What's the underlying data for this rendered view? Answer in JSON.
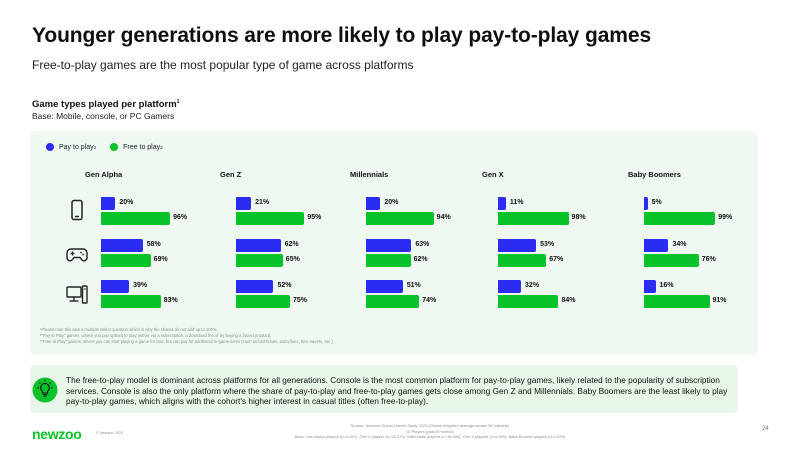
{
  "title": "Younger generations are more likely to play pay-to-play games",
  "subtitle": "Free-to-play games are the most popular type of game across platforms",
  "chart_data": {
    "type": "bar",
    "title": "Game types played per platform",
    "title_note": "1",
    "base": "Base: Mobile, console, or PC Gamers",
    "legend": [
      {
        "name": "Pay to play",
        "note": "2",
        "color": "#2b2cf2"
      },
      {
        "name": "Free to play",
        "note": "3",
        "color": "#0ac22a"
      }
    ],
    "legend_placement": "top-left",
    "platforms": [
      {
        "key": "mobile",
        "icon": "mobile-phone-icon"
      },
      {
        "key": "console",
        "icon": "gamepad-icon"
      },
      {
        "key": "pc",
        "icon": "desktop-pc-icon"
      }
    ],
    "xlim": [
      0,
      100
    ],
    "unit": "%",
    "groups": [
      {
        "name": "Gen Alpha",
        "pay": [
          20,
          58,
          39
        ],
        "free": [
          96,
          69,
          83
        ]
      },
      {
        "name": "Gen Z",
        "pay": [
          21,
          62,
          52
        ],
        "free": [
          95,
          65,
          75
        ]
      },
      {
        "name": "Millennials",
        "pay": [
          20,
          63,
          51
        ],
        "free": [
          94,
          62,
          74
        ]
      },
      {
        "name": "Gen X",
        "pay": [
          11,
          53,
          32
        ],
        "free": [
          98,
          67,
          84
        ]
      },
      {
        "name": "Baby Boomers",
        "pay": [
          5,
          34,
          16
        ],
        "free": [
          99,
          76,
          91
        ]
      }
    ]
  },
  "footnotes": [
    "¹Please note this was a multiple select question which is why the shares do not add up to 100%",
    "²\"Pay to Play\" games, where you pay upfront to play (either via a subscription, a download fee or by buying a boxed product).",
    "³\"Free to Play\" games, where you can start playing a game for free, but can pay for additional in-game items (such as loot boxes, extra lives, time savers, etc.)"
  ],
  "insight": {
    "icon": "lightbulb-icon",
    "text": "The free-to-play model is dominant across platforms for all generations. Console is the most common platform for pay-to-play games, likely related to the popularity of subscription services. Console is also the only platform where the share of pay-to-play and free-to-play games gets close among Gen Z and Millennials. Baby Boomers are the least likely to play pay-to-play games, which aligns with the cohort's higher interest in casual titles (often free-to-play)."
  },
  "footer": {
    "logo": "newzoo",
    "copyright": "© Newzoo 2023",
    "source_lines": [
      "Source: Newzoo Global Gamer Study 2023 (Global weighted average across 36 markets)",
      "Q: Players (past 6 months)",
      "Base: Gen Alpha players (n=4,957), Gen Z players (n=22,974), Millennials players (n=18,690), Gen X players (n=9,999), Baby Boomer players (n=1,620)"
    ],
    "page_number": "24"
  }
}
